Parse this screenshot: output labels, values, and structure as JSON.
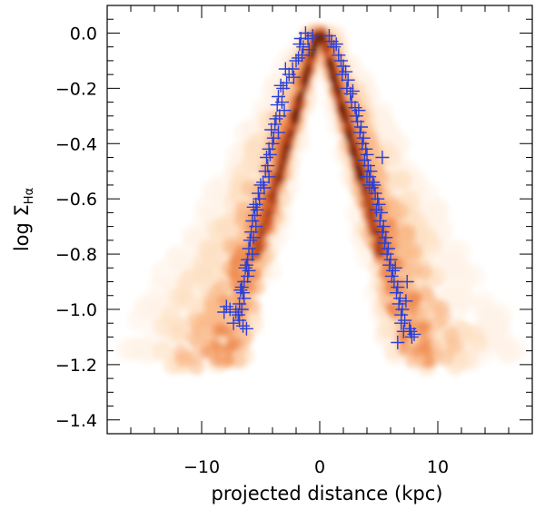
{
  "chart_data": {
    "type": "scatter",
    "title": "",
    "xlabel": "projected distance (kpc)",
    "ylabel_prefix": "log Σ",
    "ylabel_subscript": "Hα",
    "xlim": [
      -18,
      18
    ],
    "ylim": [
      -1.45,
      0.1
    ],
    "x_major_ticks": [
      -10,
      0,
      10
    ],
    "x_tick_labels": [
      "−10",
      "0",
      "10"
    ],
    "y_major_ticks": [
      0.0,
      -0.2,
      -0.4,
      -0.6,
      -0.8,
      -1.0,
      -1.2,
      -1.4
    ],
    "y_tick_labels": [
      "0.0",
      "−0.2",
      "−0.4",
      "−0.6",
      "−0.8",
      "−1.0",
      "−1.2",
      "−1.4"
    ],
    "marker_color": "#2a3fd6",
    "density_colormap": [
      "#fff3e8",
      "#fde0c2",
      "#f9b98a",
      "#ef8a4e",
      "#d9612a",
      "#a33a16",
      "#5e1a0c"
    ],
    "series": [
      {
        "name": "points",
        "marker": "plus",
        "x": [
          -1.6,
          -1.4,
          -1.2,
          -1.0,
          -1.7,
          -1.5,
          -2.0,
          -2.3,
          -2.2,
          -2.6,
          -2.9,
          -2.8,
          -3.1,
          -3.3,
          -3.5,
          -3.2,
          -3.0,
          -3.6,
          -3.4,
          -3.7,
          -3.8,
          -3.5,
          -3.9,
          -4.1,
          -4.0,
          -4.3,
          -4.2,
          -4.5,
          -4.4,
          -4.6,
          -4.3,
          -4.8,
          -4.7,
          -5.0,
          -5.2,
          -5.1,
          -5.4,
          -5.3,
          -5.6,
          -5.5,
          -5.7,
          -5.4,
          -5.8,
          -5.6,
          -5.9,
          -6.0,
          -5.7,
          -6.1,
          -6.2,
          -6.0,
          -6.3,
          -6.1,
          -6.4,
          -6.6,
          -6.5,
          -6.7,
          -6.4,
          -6.8,
          -6.6,
          -6.9,
          -7.1,
          -6.8,
          -7.3,
          -7.6,
          -8.1,
          -7.9,
          -6.5,
          -6.2,
          -1.8,
          -0.9,
          -0.6,
          0.8,
          1.0,
          1.2,
          1.4,
          1.6,
          1.8,
          2.0,
          1.9,
          2.2,
          2.4,
          2.3,
          2.6,
          2.8,
          2.7,
          3.0,
          3.1,
          3.3,
          3.2,
          3.5,
          3.4,
          3.7,
          3.6,
          3.9,
          4.0,
          3.8,
          4.1,
          4.3,
          4.2,
          4.5,
          4.4,
          4.7,
          4.6,
          4.9,
          5.0,
          4.8,
          5.2,
          5.1,
          5.4,
          5.3,
          5.6,
          5.5,
          5.8,
          5.7,
          6.0,
          5.9,
          6.2,
          6.1,
          6.4,
          6.3,
          6.6,
          6.5,
          6.8,
          6.7,
          7.0,
          6.9,
          7.2,
          7.4,
          7.1,
          7.6,
          7.3,
          7.8,
          6.6,
          6.9,
          8.0,
          7.7,
          4.2,
          4.0,
          5.3
        ],
        "y": [
          -0.02,
          -0.05,
          0.0,
          -0.02,
          -0.04,
          -0.08,
          -0.1,
          -0.13,
          -0.16,
          -0.15,
          -0.13,
          -0.18,
          -0.2,
          -0.19,
          -0.23,
          -0.25,
          -0.28,
          -0.26,
          -0.3,
          -0.31,
          -0.33,
          -0.36,
          -0.38,
          -0.35,
          -0.4,
          -0.42,
          -0.44,
          -0.45,
          -0.48,
          -0.5,
          -0.52,
          -0.54,
          -0.56,
          -0.55,
          -0.58,
          -0.6,
          -0.62,
          -0.64,
          -0.63,
          -0.66,
          -0.68,
          -0.7,
          -0.72,
          -0.74,
          -0.75,
          -0.78,
          -0.8,
          -0.82,
          -0.84,
          -0.86,
          -0.85,
          -0.88,
          -0.9,
          -0.92,
          -0.94,
          -0.93,
          -0.96,
          -0.98,
          -1.0,
          -1.02,
          -1.01,
          -1.04,
          -1.05,
          -1.0,
          -1.01,
          -0.99,
          -1.06,
          -1.07,
          -0.09,
          -0.06,
          -0.01,
          -0.01,
          -0.03,
          -0.05,
          -0.04,
          -0.08,
          -0.1,
          -0.12,
          -0.15,
          -0.14,
          -0.17,
          -0.2,
          -0.22,
          -0.21,
          -0.25,
          -0.27,
          -0.3,
          -0.28,
          -0.32,
          -0.34,
          -0.36,
          -0.38,
          -0.4,
          -0.42,
          -0.44,
          -0.46,
          -0.48,
          -0.5,
          -0.52,
          -0.54,
          -0.56,
          -0.58,
          -0.55,
          -0.6,
          -0.62,
          -0.64,
          -0.65,
          -0.68,
          -0.7,
          -0.72,
          -0.74,
          -0.76,
          -0.78,
          -0.8,
          -0.82,
          -0.84,
          -0.86,
          -0.88,
          -0.85,
          -0.9,
          -0.92,
          -0.94,
          -0.96,
          -0.98,
          -1.0,
          -1.02,
          -1.04,
          -0.9,
          -1.08,
          -1.07,
          -0.97,
          -1.1,
          -1.12,
          -1.05,
          -1.09,
          -1.08,
          -0.55,
          -0.52,
          -0.45
        ]
      }
    ]
  }
}
